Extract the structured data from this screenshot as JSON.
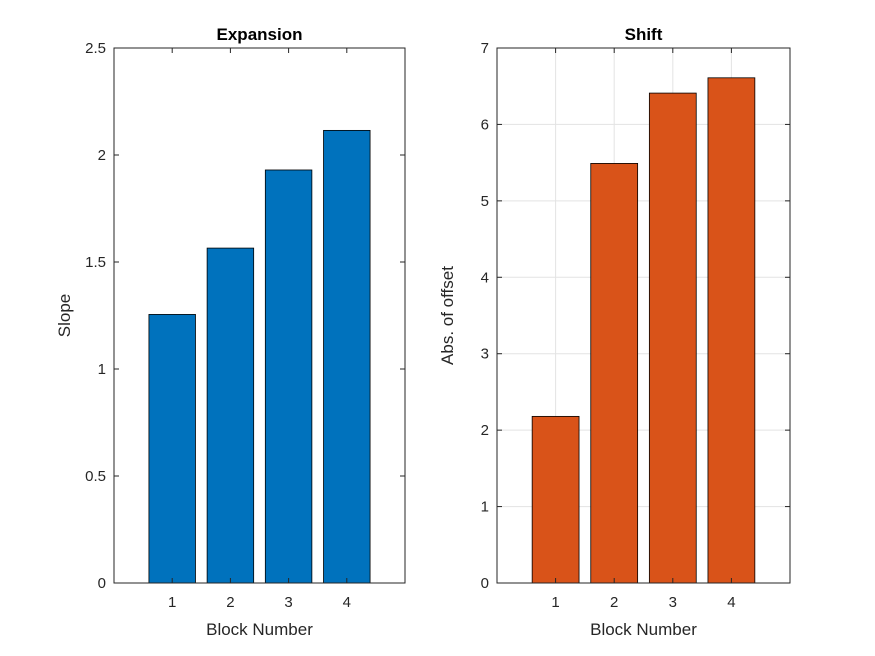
{
  "chart_data": [
    {
      "type": "bar",
      "title": "Expansion",
      "xlabel": "Block Number",
      "ylabel": "Slope",
      "categories": [
        "1",
        "2",
        "3",
        "4"
      ],
      "values": [
        1.255,
        1.565,
        1.93,
        2.115
      ],
      "xlim": [
        0,
        5
      ],
      "ylim": [
        0,
        2.5
      ],
      "yticks": [
        0,
        0.5,
        1,
        1.5,
        2,
        2.5
      ],
      "ytick_labels": [
        "0",
        "0.5",
        "1",
        "1.5",
        "2",
        "2.5"
      ],
      "grid": false,
      "color": "#0072BD"
    },
    {
      "type": "bar",
      "title": "Shift",
      "xlabel": "Block Number",
      "ylabel": "Abs. of offset",
      "categories": [
        "1",
        "2",
        "3",
        "4"
      ],
      "values": [
        2.18,
        5.49,
        6.41,
        6.61
      ],
      "xlim": [
        0,
        5
      ],
      "ylim": [
        0,
        7
      ],
      "yticks": [
        0,
        1,
        2,
        3,
        4,
        5,
        6,
        7
      ],
      "ytick_labels": [
        "0",
        "1",
        "2",
        "3",
        "4",
        "5",
        "6",
        "7"
      ],
      "grid": true,
      "color": "#D95319"
    }
  ]
}
